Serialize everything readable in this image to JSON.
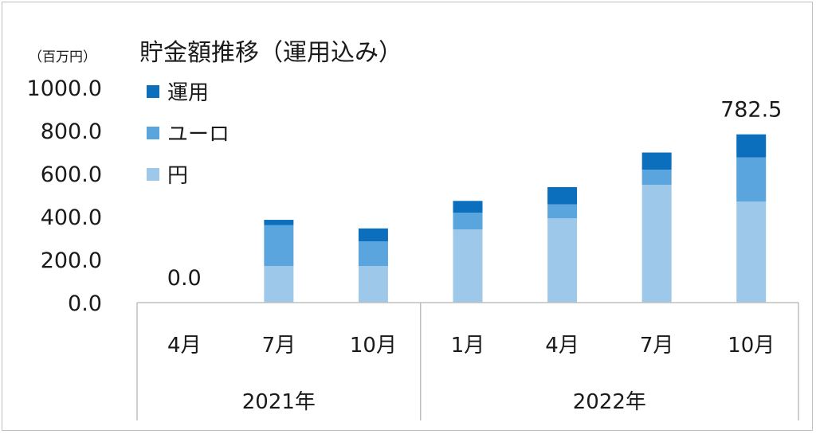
{
  "chart_data": {
    "type": "bar",
    "stacked": true,
    "title": "貯金額推移（運用込み）",
    "unit_label": "（百万円）",
    "categories": [
      "4月",
      "7月",
      "10月",
      "1月",
      "4月",
      "7月",
      "10月"
    ],
    "groups": [
      {
        "label": "2021年",
        "span": 3
      },
      {
        "label": "2022年",
        "span": 4
      }
    ],
    "series": [
      {
        "name": "円",
        "color": "#9dc8ea",
        "values": [
          0,
          170,
          170,
          340,
          392,
          548,
          470
        ]
      },
      {
        "name": "ユーロ",
        "color": "#5aa5dd",
        "values": [
          0,
          190,
          115,
          78,
          65,
          70,
          205
        ]
      },
      {
        "name": "運用",
        "color": "#0b6fbe",
        "values": [
          0,
          25,
          60,
          55,
          80,
          80,
          107.5
        ]
      }
    ],
    "legend_order": [
      "運用",
      "ユーロ",
      "円"
    ],
    "legend_position": "top-left",
    "ylim": [
      0,
      1000
    ],
    "yticks": [
      "0.0",
      "200.0",
      "400.0",
      "600.0",
      "800.0",
      "1000.0"
    ],
    "data_labels": [
      {
        "index": 0,
        "text": "0.0"
      },
      {
        "index": 6,
        "text": "782.5"
      }
    ],
    "grid": false
  }
}
